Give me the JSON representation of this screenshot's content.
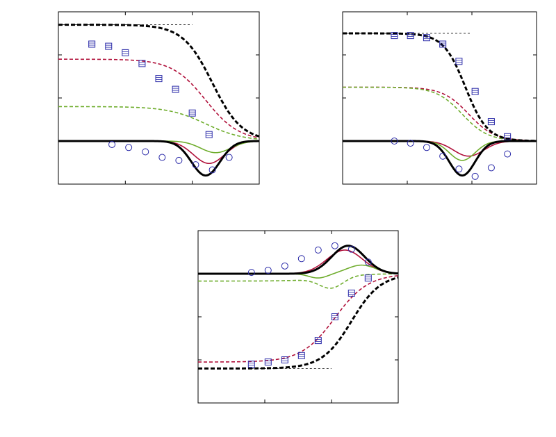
{
  "colors": {
    "black": "#000000",
    "red": "#b0103a",
    "green": "#6fad2d",
    "marker": "#2a2aa8",
    "frame": "#000000",
    "reference": "#000000"
  },
  "chart_data": [
    {
      "type": "line",
      "panel": "top-left",
      "xlim": [
        0,
        3
      ],
      "ylim": [
        -1.0,
        3.0
      ],
      "xticks": [
        1,
        2
      ],
      "yticks": [
        1,
        2
      ],
      "reference_line": {
        "y": 2.7,
        "x": [
          0,
          2
        ]
      },
      "series": [
        {
          "style": "dashed-thick",
          "color": "black",
          "kind": "sigmoid",
          "top": 2.7,
          "mid": 2.3,
          "width": 0.22
        },
        {
          "style": "dashed",
          "color": "red",
          "kind": "sigmoid",
          "top": 1.9,
          "mid": 2.2,
          "width": 0.25
        },
        {
          "style": "dashed",
          "color": "green",
          "kind": "sigmoid",
          "top": 0.8,
          "mid": 2.2,
          "width": 0.28
        },
        {
          "style": "solid-thick",
          "color": "black",
          "kind": "dip",
          "depth": -0.8,
          "mid": 2.2,
          "width": 0.3
        },
        {
          "style": "solid",
          "color": "red",
          "kind": "dip",
          "depth": -0.52,
          "mid": 2.25,
          "width": 0.33
        },
        {
          "style": "solid",
          "color": "green",
          "kind": "dip",
          "depth": -0.27,
          "mid": 2.35,
          "width": 0.32
        }
      ],
      "markers_square": {
        "x": [
          0.5,
          0.75,
          1.0,
          1.25,
          1.5,
          1.75,
          2.0,
          2.25
        ],
        "y": [
          2.25,
          2.2,
          2.05,
          1.8,
          1.45,
          1.2,
          0.65,
          0.15
        ]
      },
      "markers_circle": {
        "x": [
          0.8,
          1.05,
          1.3,
          1.55,
          1.8,
          2.05,
          2.3,
          2.55
        ],
        "y": [
          -0.08,
          -0.15,
          -0.25,
          -0.38,
          -0.45,
          -0.55,
          -0.67,
          -0.38
        ]
      }
    },
    {
      "type": "line",
      "panel": "top-right",
      "xlim": [
        0,
        3
      ],
      "ylim": [
        -1.0,
        3.0
      ],
      "xticks": [
        1,
        2
      ],
      "yticks": [
        1,
        2
      ],
      "reference_line": {
        "y": 2.5,
        "x": [
          0,
          2
        ]
      },
      "series": [
        {
          "style": "dashed-thick",
          "color": "black",
          "kind": "sigmoid",
          "top": 2.5,
          "mid": 1.9,
          "width": 0.17
        },
        {
          "style": "dashed",
          "color": "red",
          "kind": "sigmoid",
          "top": 1.25,
          "mid": 1.95,
          "width": 0.2
        },
        {
          "style": "dashed",
          "color": "green",
          "kind": "sigmoid",
          "top": 1.25,
          "mid": 1.85,
          "width": 0.2
        },
        {
          "style": "solid-thick",
          "color": "black",
          "kind": "dip",
          "depth": -0.8,
          "mid": 1.85,
          "width": 0.28
        },
        {
          "style": "solid",
          "color": "red",
          "kind": "dip",
          "depth": -0.35,
          "mid": 1.95,
          "width": 0.33
        },
        {
          "style": "solid",
          "color": "green",
          "kind": "dip",
          "depth": -0.45,
          "mid": 1.85,
          "width": 0.28
        }
      ],
      "markers_square": {
        "x": [
          0.8,
          1.05,
          1.3,
          1.55,
          1.8,
          2.05,
          2.3,
          2.55
        ],
        "y": [
          2.45,
          2.45,
          2.4,
          2.25,
          1.85,
          1.15,
          0.45,
          0.1
        ]
      },
      "markers_circle": {
        "x": [
          0.8,
          1.05,
          1.3,
          1.55,
          1.8,
          2.05,
          2.3,
          2.55
        ],
        "y": [
          0.0,
          -0.05,
          -0.15,
          -0.35,
          -0.65,
          -0.82,
          -0.62,
          -0.3
        ]
      }
    },
    {
      "type": "line",
      "panel": "bottom",
      "xlim": [
        0,
        3
      ],
      "ylim": [
        -3.0,
        1.0
      ],
      "xticks": [
        1,
        2
      ],
      "yticks": [
        -2,
        -1
      ],
      "reference_line": {
        "y": -2.2,
        "x": [
          0.8,
          2
        ]
      },
      "series": [
        {
          "style": "dashed-thick",
          "color": "black",
          "kind": "sigmoid",
          "top": -2.2,
          "mid": 2.3,
          "width": 0.22
        },
        {
          "style": "dashed",
          "color": "red",
          "kind": "sigmoid",
          "top": -2.05,
          "mid": 2.05,
          "width": 0.25
        },
        {
          "style": "dashed",
          "color": "green",
          "kind": "mixed",
          "top": -0.17,
          "mid": 2.0,
          "width": 0.25,
          "depth": -0.25
        },
        {
          "style": "solid-thick",
          "color": "black",
          "kind": "dip",
          "depth": 0.65,
          "mid": 2.25,
          "width": 0.35
        },
        {
          "style": "solid",
          "color": "red",
          "kind": "dip",
          "depth": 0.55,
          "mid": 2.2,
          "width": 0.38
        },
        {
          "style": "solid",
          "color": "green",
          "kind": "wave",
          "depth": -0.1,
          "mid": 1.8,
          "width": 0.2,
          "depth2": 0.2,
          "mid2": 2.45,
          "width2": 0.3
        }
      ],
      "markers_square": {
        "x": [
          0.8,
          1.05,
          1.3,
          1.55,
          1.8,
          2.05,
          2.3,
          2.55
        ],
        "y": [
          -2.1,
          -2.05,
          -2.0,
          -1.9,
          -1.55,
          -1.0,
          -0.45,
          -0.1
        ]
      },
      "markers_circle": {
        "x": [
          0.8,
          1.05,
          1.3,
          1.55,
          1.8,
          2.05,
          2.3,
          2.55
        ],
        "y": [
          0.03,
          0.08,
          0.18,
          0.35,
          0.55,
          0.65,
          0.57,
          0.27
        ]
      }
    }
  ]
}
